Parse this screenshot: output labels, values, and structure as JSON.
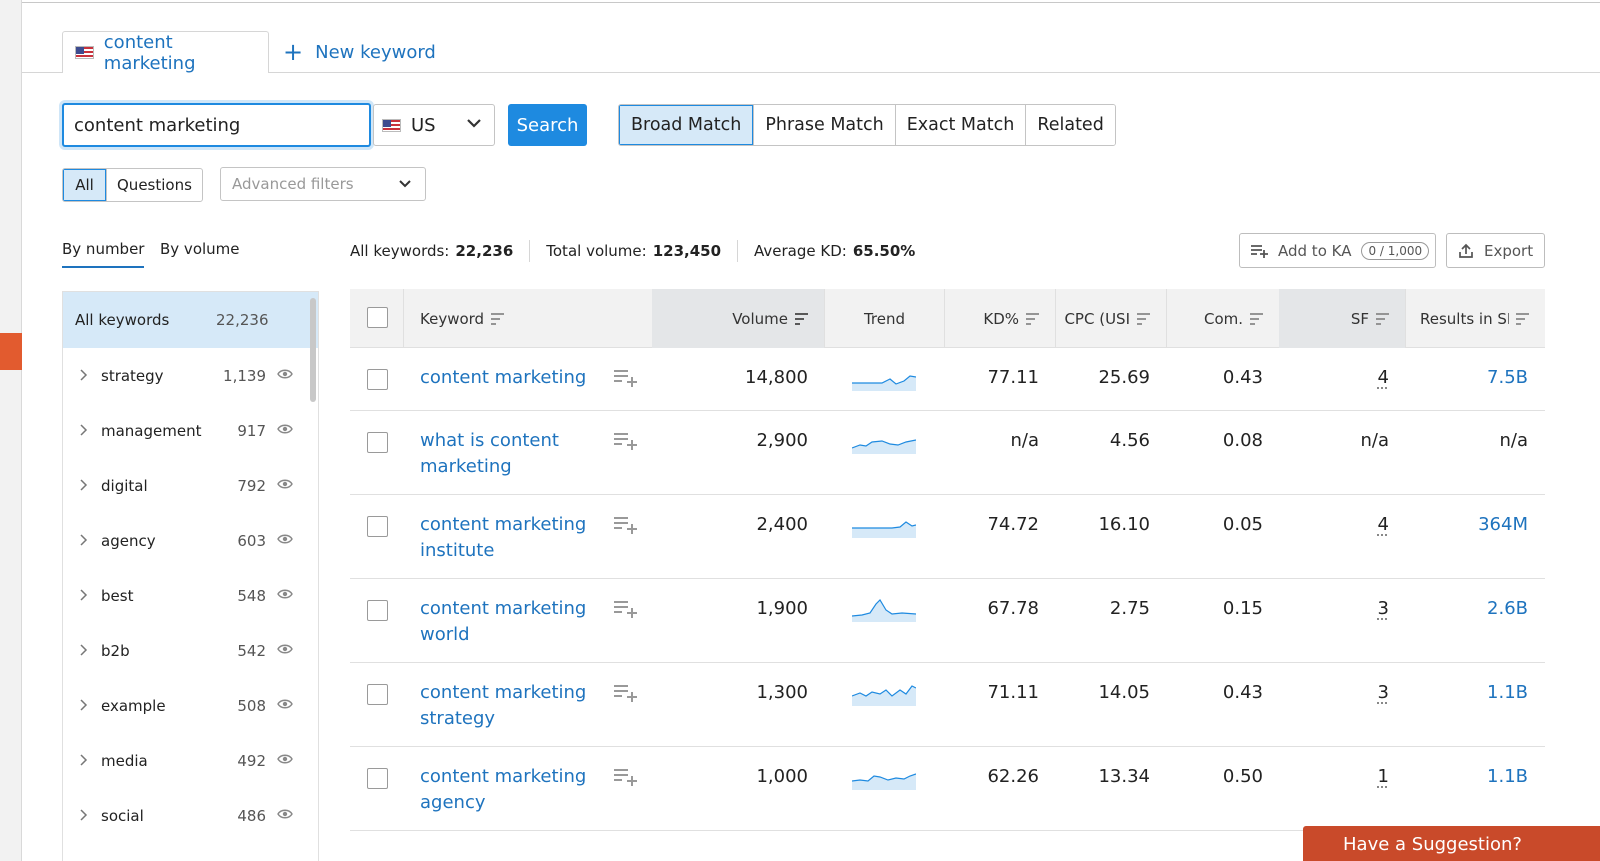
{
  "tabs": {
    "active_label": "content marketing",
    "new_keyword_label": "New keyword"
  },
  "search": {
    "query": "content marketing",
    "country": "US",
    "button_label": "Search"
  },
  "match_types": [
    "Broad Match",
    "Phrase Match",
    "Exact Match",
    "Related"
  ],
  "filters": {
    "all": "All",
    "questions": "Questions",
    "advanced_placeholder": "Advanced filters"
  },
  "group_tabs": {
    "by_number": "By number",
    "by_volume": "By volume"
  },
  "stats": {
    "all_keywords_label": "All keywords:",
    "all_keywords_value": "22,236",
    "total_volume_label": "Total volume:",
    "total_volume_value": "123,450",
    "avg_kd_label": "Average KD:",
    "avg_kd_value": "65.50%"
  },
  "actions": {
    "add_to_ka": "Add to KA",
    "ka_counter": "0 / 1,000",
    "export": "Export"
  },
  "groups": {
    "all_label": "All keywords",
    "all_count": "22,236",
    "items": [
      {
        "name": "strategy",
        "count": "1,139"
      },
      {
        "name": "management",
        "count": "917"
      },
      {
        "name": "digital",
        "count": "792"
      },
      {
        "name": "agency",
        "count": "603"
      },
      {
        "name": "best",
        "count": "548"
      },
      {
        "name": "b2b",
        "count": "542"
      },
      {
        "name": "example",
        "count": "508"
      },
      {
        "name": "media",
        "count": "492"
      },
      {
        "name": "social",
        "count": "486"
      }
    ]
  },
  "table": {
    "columns": {
      "keyword": "Keyword",
      "volume": "Volume",
      "trend": "Trend",
      "kd": "KD%",
      "cpc": "CPC (USI",
      "com": "Com.",
      "sf": "SF",
      "results": "Results in SE"
    },
    "rows": [
      {
        "keyword": "content marketing",
        "volume": "14,800",
        "kd": "77.11",
        "cpc": "25.69",
        "com": "0.43",
        "sf": "4",
        "results": "7.5B"
      },
      {
        "keyword": "what is content marketing",
        "volume": "2,900",
        "kd": "n/a",
        "cpc": "4.56",
        "com": "0.08",
        "sf": "n/a",
        "results": "n/a"
      },
      {
        "keyword": "content marketing institute",
        "volume": "2,400",
        "kd": "74.72",
        "cpc": "16.10",
        "com": "0.05",
        "sf": "4",
        "results": "364M"
      },
      {
        "keyword": "content marketing world",
        "volume": "1,900",
        "kd": "67.78",
        "cpc": "2.75",
        "com": "0.15",
        "sf": "3",
        "results": "2.6B"
      },
      {
        "keyword": "content marketing strategy",
        "volume": "1,300",
        "kd": "71.11",
        "cpc": "14.05",
        "com": "0.43",
        "sf": "3",
        "results": "1.1B"
      },
      {
        "keyword": "content marketing agency",
        "volume": "1,000",
        "kd": "62.26",
        "cpc": "13.34",
        "com": "0.50",
        "sf": "1",
        "results": "1.1B"
      }
    ]
  },
  "suggestion_label": "Have a Suggestion?",
  "colors": {
    "accent": "#1e8ae0",
    "link": "#1e73be",
    "selected_bg": "#d6e9f8",
    "brand_orange": "#e25b2f"
  }
}
